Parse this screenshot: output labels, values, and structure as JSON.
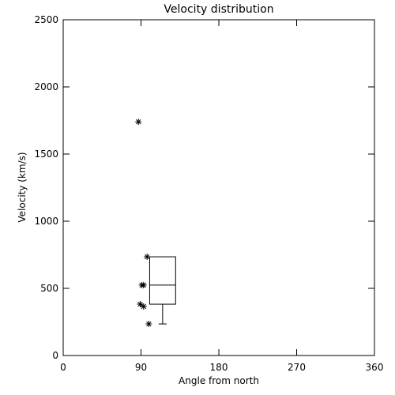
{
  "chart_data": {
    "type": "scatter",
    "title": "Velocity distribution",
    "x_label": "Angle from north",
    "y_label": "Velocity (km/s)",
    "x": [
      87,
      97,
      91,
      93,
      89,
      93,
      99
    ],
    "values": [
      1740,
      735,
      524,
      524,
      382,
      365,
      235
    ],
    "color": "#000000",
    "box": {
      "x_range": [
        100,
        130
      ],
      "q1": 382,
      "median": 524,
      "q3": 735,
      "whisker_low": 235,
      "whisker_x": 115
    },
    "xlim": [
      0,
      360
    ],
    "xticks": [
      0,
      90,
      180,
      270,
      360
    ],
    "ylim": [
      0,
      2500
    ],
    "yticks": [
      0,
      500,
      1000,
      1500,
      2000,
      2500
    ]
  }
}
